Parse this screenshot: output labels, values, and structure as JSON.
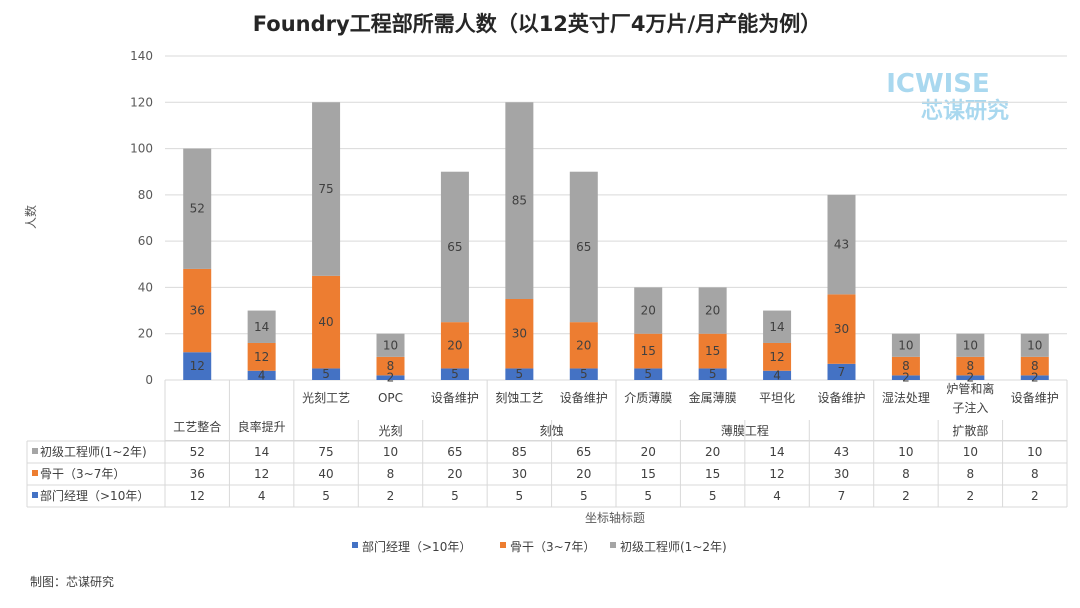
{
  "chart_data": {
    "type": "bar",
    "stacked": true,
    "title": "Foundry工程部所需人数（以12英寸厂4万片/月产能为例）",
    "ylabel": "人数",
    "xlabel": "坐标轴标题",
    "ylim": [
      0,
      140
    ],
    "ytick_step": 20,
    "grid": true,
    "legend_position": "bottom",
    "categories": [
      "工艺整合",
      "良率提升",
      "光刻工艺",
      "OPC",
      "设备维护",
      "刻蚀工艺",
      "设备维护",
      "介质薄膜",
      "金属薄膜",
      "平坦化",
      "设备维护",
      "湿法处理",
      "炉管和离子注入",
      "设备维护"
    ],
    "groups": [
      {
        "label": "",
        "start": 0,
        "end": 0
      },
      {
        "label": "",
        "start": 1,
        "end": 1
      },
      {
        "label": "光刻",
        "start": 2,
        "end": 4
      },
      {
        "label": "刻蚀",
        "start": 5,
        "end": 6
      },
      {
        "label": "薄膜工程",
        "start": 7,
        "end": 10
      },
      {
        "label": "扩散部",
        "start": 11,
        "end": 13
      }
    ],
    "series": [
      {
        "name": "部门经理（>10年）",
        "color": "#4472c4",
        "values": [
          12,
          4,
          5,
          2,
          5,
          5,
          5,
          5,
          5,
          4,
          7,
          2,
          2,
          2
        ]
      },
      {
        "name": "骨干（3~7年）",
        "color": "#ed7d31",
        "values": [
          36,
          12,
          40,
          8,
          20,
          30,
          20,
          15,
          15,
          12,
          30,
          8,
          8,
          8
        ]
      },
      {
        "name": "初级工程师(1~2年)",
        "color": "#a5a5a5",
        "values": [
          52,
          14,
          75,
          10,
          65,
          85,
          65,
          20,
          20,
          14,
          43,
          10,
          10,
          10
        ]
      }
    ]
  },
  "logo": {
    "top": "ICWISE",
    "bottom": "芯谋研究"
  },
  "credit": "制图：芯谋研究"
}
